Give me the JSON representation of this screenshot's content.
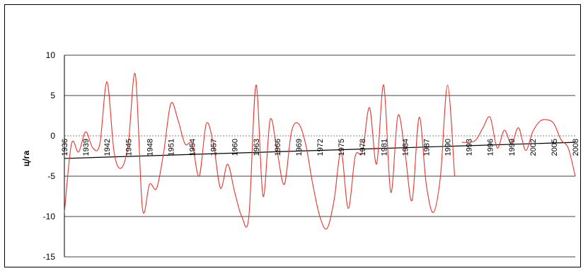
{
  "chart_data": {
    "type": "line",
    "title": "",
    "xlabel": "",
    "ylabel": "ц/га",
    "ylim": [
      -15,
      10
    ],
    "yticks": [
      "10",
      "5",
      "0",
      "-5",
      "-10",
      "-15"
    ],
    "ytick_values": [
      10,
      5,
      0,
      -5,
      -10,
      -15
    ],
    "xticks": [
      "1936",
      "1939",
      "1942",
      "1945",
      "1948",
      "1951",
      "1954",
      "1957",
      "1960",
      "1963",
      "1966",
      "1969",
      "1972",
      "1975",
      "1978",
      "1981",
      "1984",
      "1987",
      "1990",
      "1993",
      "1996",
      "1999",
      "2002",
      "2005",
      "2008"
    ],
    "grid": true,
    "legend": "none",
    "colors": {
      "series": "#e8342f",
      "trend": "#000000",
      "grid": "#000000",
      "zero_line": "#7f7f7f"
    },
    "series": [
      {
        "x": [
          1936,
          1937,
          1938,
          1939,
          1940,
          1941,
          1942,
          1943,
          1944,
          1945,
          1946,
          1947,
          1948,
          1949,
          1950,
          1951,
          1952,
          1953,
          1954,
          1955,
          1956,
          1957,
          1958,
          1959,
          1960,
          1961,
          1962,
          1963,
          1964,
          1965,
          1966,
          1967,
          1968,
          1969,
          1970,
          1971,
          1972,
          1973,
          1974,
          1975,
          1976,
          1977,
          1978,
          1979,
          1980,
          1981,
          1982,
          1983,
          1984,
          1985,
          1986,
          1987,
          1988,
          1989,
          1990,
          1991
        ],
        "values": [
          -9.5,
          -1.0,
          -2.0,
          0.5,
          -1.5,
          -1.0,
          6.7,
          -2.0,
          -4.0,
          -1.0,
          7.6,
          -9.0,
          -6.0,
          -6.5,
          -2.0,
          4.0,
          2.0,
          -1.0,
          -1.0,
          -5.0,
          1.5,
          -1.0,
          -6.5,
          -3.5,
          -7.0,
          -10.0,
          -10.0,
          6.3,
          -7.5,
          2.0,
          -2.0,
          -6.0,
          0.5,
          1.5,
          -1.0,
          -6.0,
          -10.0,
          -11.5,
          -8.0,
          -2.0,
          -9.0,
          -2.5,
          -2.0,
          3.5,
          -3.5,
          6.3,
          -7.0,
          2.5,
          -2.0,
          -8.0,
          2.3,
          -6.0,
          -9.5,
          -5.0,
          6.3,
          -5.0
        ]
      },
      {
        "x": [
          1992,
          1993,
          1994,
          1995,
          1996,
          1997,
          1998,
          1999,
          2000,
          2001,
          2002,
          2003,
          2004,
          2005,
          2006,
          2007,
          2008
        ],
        "values": [
          -0.8,
          -0.8,
          -0.5,
          1.0,
          2.3,
          -1.5,
          0.7,
          -1.0,
          1.0,
          -1.8,
          0.5,
          1.8,
          2.0,
          1.5,
          -0.5,
          -1.5,
          -5.0
        ]
      }
    ],
    "trend": {
      "x": [
        1936,
        2008
      ],
      "values": [
        -2.8,
        -0.8
      ]
    }
  }
}
